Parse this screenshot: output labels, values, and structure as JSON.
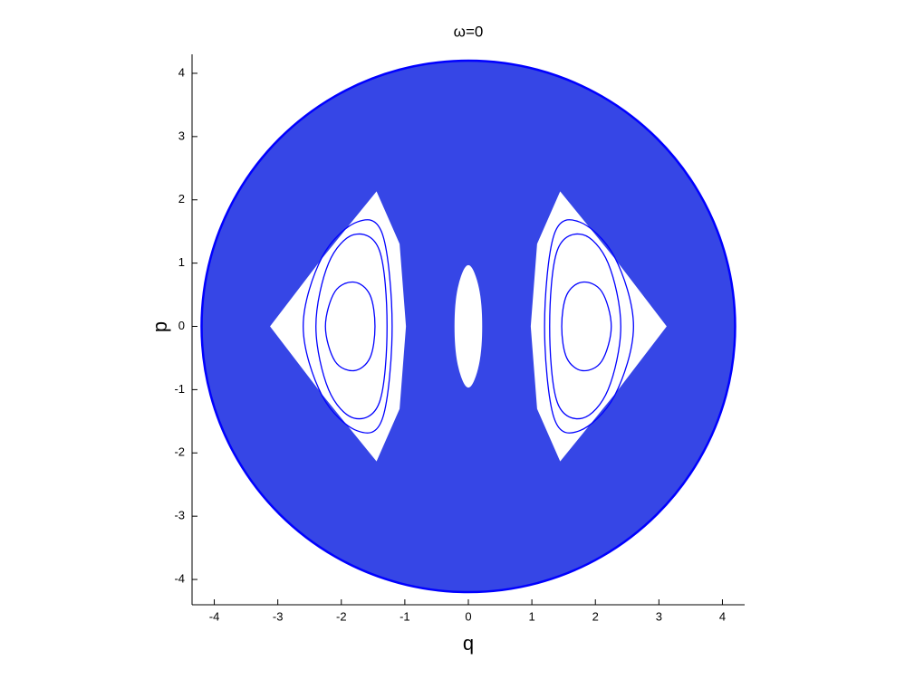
{
  "chart_data": {
    "type": "line",
    "title": "ω=0",
    "x_label": "q",
    "y_label": "p",
    "xlim": [
      -4.35,
      4.35
    ],
    "ylim": [
      -4.4,
      4.3
    ],
    "xticks": [
      -4,
      -3,
      -2,
      -1,
      0,
      1,
      2,
      3,
      4
    ],
    "yticks": [
      -4,
      -3,
      -2,
      -1,
      0,
      1,
      2,
      3,
      4
    ],
    "series": [
      {
        "color": "#0000ff",
        "fill": "#3646e6",
        "smooth": true,
        "x": [
          4.2,
          4.057,
          3.637,
          2.97,
          2.1,
          1.087,
          0,
          -1.087,
          -2.1,
          -2.97,
          -3.637,
          -4.057,
          -4.2,
          -4.057,
          -3.637,
          -2.97,
          -2.1,
          -1.087,
          0,
          1.087,
          2.1,
          2.97,
          3.637,
          4.057
        ],
        "values": [
          0,
          1.087,
          2.1,
          2.97,
          3.637,
          4.057,
          4.2,
          4.057,
          3.637,
          2.97,
          2.1,
          1.087,
          0,
          -1.087,
          -2.1,
          -2.97,
          -3.637,
          -4.057,
          -4.2,
          -4.057,
          -3.637,
          -2.97,
          -2.1,
          -1.087
        ]
      },
      {
        "color": "#ffffff",
        "fill": "#ffffff",
        "smooth": false,
        "x": [
          1.45,
          2.3,
          3.1,
          2.3,
          1.45,
          1.1,
          1.0,
          1.1
        ],
        "values": [
          2.1,
          1.05,
          0,
          -1.05,
          -2.1,
          -1.3,
          0,
          1.3
        ]
      },
      {
        "color": "#ffffff",
        "fill": "#ffffff",
        "smooth": false,
        "x": [
          -1.45,
          -2.3,
          -3.1,
          -2.3,
          -1.45,
          -1.1,
          -1.0,
          -1.1
        ],
        "values": [
          2.1,
          1.05,
          0,
          -1.05,
          -2.1,
          -1.3,
          0,
          1.3
        ]
      },
      {
        "color": "#ffffff",
        "fill": "#ffffff",
        "smooth": true,
        "x": [
          0,
          0.15,
          0.2,
          0.15,
          0,
          -0.15,
          -0.2,
          -0.15
        ],
        "values": [
          0.95,
          0.6,
          0,
          -0.6,
          -0.95,
          -0.6,
          0,
          0.6
        ]
      },
      {
        "color": "#0000ff",
        "smooth": true,
        "x": [
          2.25,
          2.1,
          1.8,
          1.55,
          1.47,
          1.55,
          1.8,
          2.1
        ],
        "values": [
          0,
          0.55,
          0.7,
          0.5,
          0,
          -0.5,
          -0.7,
          -0.55
        ]
      },
      {
        "color": "#0000ff",
        "smooth": true,
        "x": [
          2.4,
          2.2,
          1.8,
          1.4,
          1.28,
          1.4,
          1.8,
          2.2
        ],
        "values": [
          0,
          1.0,
          1.45,
          1.2,
          0,
          -1.2,
          -1.45,
          -1.0
        ]
      },
      {
        "color": "#0000ff",
        "smooth": true,
        "x": [
          2.6,
          2.3,
          1.75,
          1.35,
          1.2,
          1.35,
          1.75,
          2.3
        ],
        "values": [
          0,
          1.1,
          1.65,
          1.45,
          0,
          -1.45,
          -1.65,
          -1.1
        ]
      },
      {
        "color": "#0000ff",
        "smooth": true,
        "x": [
          -2.25,
          -2.1,
          -1.8,
          -1.55,
          -1.47,
          -1.55,
          -1.8,
          -2.1
        ],
        "values": [
          0,
          0.55,
          0.7,
          0.5,
          0,
          -0.5,
          -0.7,
          -0.55
        ]
      },
      {
        "color": "#0000ff",
        "smooth": true,
        "x": [
          -2.4,
          -2.2,
          -1.8,
          -1.4,
          -1.28,
          -1.4,
          -1.8,
          -2.2
        ],
        "values": [
          0,
          1.0,
          1.45,
          1.2,
          0,
          -1.2,
          -1.45,
          -1.0
        ]
      },
      {
        "color": "#0000ff",
        "smooth": true,
        "x": [
          -2.6,
          -2.3,
          -1.75,
          -1.35,
          -1.2,
          -1.35,
          -1.75,
          -2.3
        ],
        "values": [
          0,
          1.1,
          1.65,
          1.45,
          0,
          -1.45,
          -1.65,
          -1.1
        ]
      }
    ]
  }
}
